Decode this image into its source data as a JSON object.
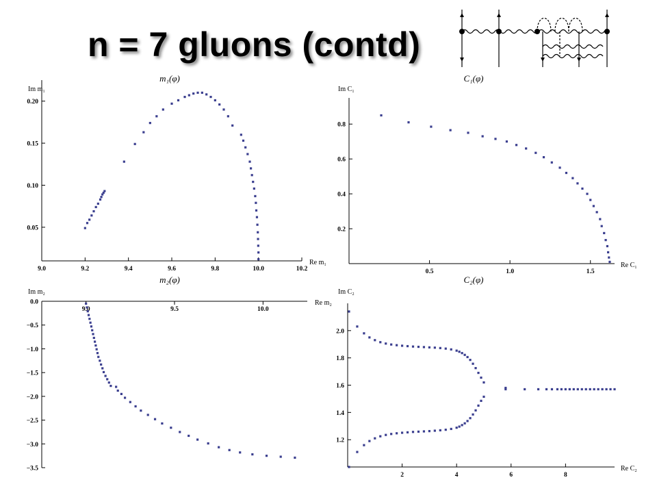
{
  "slide": {
    "title": "n = 7 gluons (contd)"
  },
  "diagram": {
    "description": ""
  },
  "chart_data": [
    {
      "id": "m1",
      "type": "scatter",
      "title": "m₁(φ)",
      "xlabel": "Re m₁",
      "ylabel": "Im m₁",
      "xlim": [
        9.0,
        10.2
      ],
      "ylim": [
        0.01,
        0.225
      ],
      "xticks": [
        9.0,
        9.2,
        9.4,
        9.6,
        9.8,
        10.0,
        10.2
      ],
      "yticks": [
        0.05,
        0.1,
        0.15,
        0.2
      ],
      "xtick_labels": [
        "9.0",
        "9.2",
        "9.4",
        "9.6",
        "9.8",
        "10.0",
        "10.2"
      ],
      "ytick_labels": [
        "0.05",
        "0.10",
        "0.15",
        "0.20"
      ],
      "color": "#3b3f8f",
      "points": [
        [
          9.2,
          0.049
        ],
        [
          9.21,
          0.055
        ],
        [
          9.22,
          0.059
        ],
        [
          9.23,
          0.064
        ],
        [
          9.24,
          0.069
        ],
        [
          9.25,
          0.074
        ],
        [
          9.26,
          0.078
        ],
        [
          9.27,
          0.083
        ],
        [
          9.275,
          0.086
        ],
        [
          9.28,
          0.089
        ],
        [
          9.285,
          0.091
        ],
        [
          9.29,
          0.093
        ],
        [
          9.38,
          0.128
        ],
        [
          9.43,
          0.149
        ],
        [
          9.47,
          0.163
        ],
        [
          9.5,
          0.174
        ],
        [
          9.53,
          0.182
        ],
        [
          9.56,
          0.19
        ],
        [
          9.6,
          0.197
        ],
        [
          9.63,
          0.201
        ],
        [
          9.66,
          0.205
        ],
        [
          9.68,
          0.207
        ],
        [
          9.7,
          0.209
        ],
        [
          9.72,
          0.21
        ],
        [
          9.74,
          0.21
        ],
        [
          9.76,
          0.208
        ],
        [
          9.78,
          0.205
        ],
        [
          9.8,
          0.201
        ],
        [
          9.82,
          0.196
        ],
        [
          9.84,
          0.19
        ],
        [
          9.86,
          0.182
        ],
        [
          9.88,
          0.171
        ],
        [
          9.92,
          0.16
        ],
        [
          9.93,
          0.153
        ],
        [
          9.94,
          0.145
        ],
        [
          9.95,
          0.137
        ],
        [
          9.96,
          0.128
        ],
        [
          9.965,
          0.12
        ],
        [
          9.97,
          0.112
        ],
        [
          9.975,
          0.104
        ],
        [
          9.98,
          0.096
        ],
        [
          9.985,
          0.087
        ],
        [
          9.988,
          0.079
        ],
        [
          9.99,
          0.07
        ],
        [
          9.993,
          0.062
        ],
        [
          9.995,
          0.053
        ],
        [
          9.997,
          0.044
        ],
        [
          9.998,
          0.036
        ],
        [
          9.999,
          0.028
        ],
        [
          10.0,
          0.02
        ],
        [
          10.0,
          0.012
        ]
      ]
    },
    {
      "id": "C1",
      "type": "scatter",
      "title": "C₁(φ)",
      "xlabel": "Re C₁",
      "ylabel": "Im C₁",
      "xlim": [
        0,
        1.65
      ],
      "ylim": [
        0,
        0.95
      ],
      "xticks": [
        0.5,
        1.0,
        1.5
      ],
      "yticks": [
        0.2,
        0.4,
        0.6,
        0.8
      ],
      "xtick_labels": [
        "0.5",
        "1.0",
        "1.5"
      ],
      "ytick_labels": [
        "0.2",
        "0.4",
        "0.6",
        "0.8"
      ],
      "color": "#3b3f8f",
      "points": [
        [
          0.2,
          0.85
        ],
        [
          0.37,
          0.81
        ],
        [
          0.51,
          0.785
        ],
        [
          0.63,
          0.765
        ],
        [
          0.74,
          0.75
        ],
        [
          0.83,
          0.73
        ],
        [
          0.91,
          0.715
        ],
        [
          0.98,
          0.7
        ],
        [
          1.04,
          0.68
        ],
        [
          1.1,
          0.66
        ],
        [
          1.16,
          0.635
        ],
        [
          1.21,
          0.61
        ],
        [
          1.26,
          0.58
        ],
        [
          1.31,
          0.55
        ],
        [
          1.35,
          0.52
        ],
        [
          1.39,
          0.49
        ],
        [
          1.42,
          0.46
        ],
        [
          1.45,
          0.43
        ],
        [
          1.48,
          0.4
        ],
        [
          1.5,
          0.365
        ],
        [
          1.52,
          0.33
        ],
        [
          1.54,
          0.295
        ],
        [
          1.56,
          0.255
        ],
        [
          1.57,
          0.215
        ],
        [
          1.585,
          0.175
        ],
        [
          1.595,
          0.135
        ],
        [
          1.605,
          0.1
        ],
        [
          1.61,
          0.065
        ],
        [
          1.615,
          0.035
        ],
        [
          1.62,
          0.01
        ]
      ]
    },
    {
      "id": "m2",
      "type": "scatter",
      "title": "m₂(φ)",
      "xlabel": "Re m₂",
      "ylabel": "Im m₂",
      "xlim": [
        8.75,
        10.25
      ],
      "ylim": [
        -3.5,
        0.0
      ],
      "xticks": [
        9.0,
        9.5,
        10.0
      ],
      "yticks": [
        0.0,
        -0.5,
        -1.0,
        -1.5,
        -2.0,
        -2.5,
        -3.0,
        -3.5
      ],
      "xtick_labels": [
        "9.0",
        "9.5",
        "10.0"
      ],
      "ytick_labels": [
        "0.0",
        "−0.5",
        "−1.0",
        "−1.5",
        "−2.0",
        "−2.5",
        "−3.0",
        "−3.5"
      ],
      "color": "#3b3f8f",
      "points": [
        [
          9.0,
          -0.05
        ],
        [
          9.005,
          -0.13
        ],
        [
          9.01,
          -0.21
        ],
        [
          9.015,
          -0.29
        ],
        [
          9.02,
          -0.37
        ],
        [
          9.025,
          -0.45
        ],
        [
          9.03,
          -0.53
        ],
        [
          9.035,
          -0.61
        ],
        [
          9.04,
          -0.69
        ],
        [
          9.045,
          -0.77
        ],
        [
          9.05,
          -0.85
        ],
        [
          9.055,
          -0.93
        ],
        [
          9.06,
          -1.01
        ],
        [
          9.065,
          -1.09
        ],
        [
          9.07,
          -1.17
        ],
        [
          9.078,
          -1.25
        ],
        [
          9.085,
          -1.33
        ],
        [
          9.093,
          -1.41
        ],
        [
          9.1,
          -1.49
        ],
        [
          9.11,
          -1.57
        ],
        [
          9.12,
          -1.64
        ],
        [
          9.13,
          -1.71
        ],
        [
          9.14,
          -1.78
        ],
        [
          9.17,
          -1.8
        ],
        [
          9.18,
          -1.88
        ],
        [
          9.2,
          -1.95
        ],
        [
          9.22,
          -2.03
        ],
        [
          9.25,
          -2.12
        ],
        [
          9.28,
          -2.21
        ],
        [
          9.31,
          -2.3
        ],
        [
          9.35,
          -2.39
        ],
        [
          9.39,
          -2.48
        ],
        [
          9.43,
          -2.57
        ],
        [
          9.48,
          -2.66
        ],
        [
          9.53,
          -2.75
        ],
        [
          9.58,
          -2.83
        ],
        [
          9.63,
          -2.91
        ],
        [
          9.69,
          -2.99
        ],
        [
          9.75,
          -3.07
        ],
        [
          9.81,
          -3.13
        ],
        [
          9.87,
          -3.18
        ],
        [
          9.94,
          -3.22
        ],
        [
          10.02,
          -3.25
        ],
        [
          10.1,
          -3.27
        ],
        [
          10.18,
          -3.29
        ]
      ]
    },
    {
      "id": "C2",
      "type": "scatter",
      "title": "C₂(φ)",
      "xlabel": "Re C₂",
      "ylabel": "Im C₂",
      "xlim": [
        0,
        9.8
      ],
      "ylim": [
        1.0,
        2.2
      ],
      "xticks": [
        2,
        4,
        6,
        8
      ],
      "yticks": [
        1.2,
        1.4,
        1.6,
        1.8,
        2.0
      ],
      "xtick_labels": [
        "2",
        "4",
        "6",
        "8"
      ],
      "ytick_labels": [
        "1.2",
        "1.4",
        "1.6",
        "1.8",
        "2.0"
      ],
      "color": "#3b3f8f",
      "series": [
        {
          "points": [
            [
              0.05,
              2.14
            ],
            [
              0.35,
              2.03
            ],
            [
              0.6,
              1.98
            ],
            [
              0.8,
              1.95
            ],
            [
              1.0,
              1.93
            ],
            [
              1.2,
              1.915
            ],
            [
              1.4,
              1.905
            ],
            [
              1.6,
              1.898
            ],
            [
              1.8,
              1.893
            ],
            [
              2.0,
              1.889
            ],
            [
              2.2,
              1.886
            ],
            [
              2.4,
              1.883
            ],
            [
              2.6,
              1.881
            ],
            [
              2.8,
              1.879
            ],
            [
              3.0,
              1.877
            ],
            [
              3.2,
              1.875
            ],
            [
              3.4,
              1.872
            ],
            [
              3.6,
              1.868
            ],
            [
              3.8,
              1.862
            ],
            [
              4.0,
              1.853
            ],
            [
              4.1,
              1.845
            ],
            [
              4.2,
              1.835
            ],
            [
              4.3,
              1.822
            ],
            [
              4.4,
              1.806
            ],
            [
              4.5,
              1.785
            ],
            [
              4.6,
              1.757
            ],
            [
              4.7,
              1.725
            ],
            [
              4.8,
              1.69
            ],
            [
              4.9,
              1.655
            ],
            [
              5.0,
              1.62
            ]
          ]
        },
        {
          "points": [
            [
              0.05,
              1.0
            ],
            [
              0.35,
              1.11
            ],
            [
              0.6,
              1.16
            ],
            [
              0.8,
              1.19
            ],
            [
              1.0,
              1.21
            ],
            [
              1.2,
              1.225
            ],
            [
              1.4,
              1.235
            ],
            [
              1.6,
              1.242
            ],
            [
              1.8,
              1.247
            ],
            [
              2.0,
              1.251
            ],
            [
              2.2,
              1.254
            ],
            [
              2.4,
              1.257
            ],
            [
              2.6,
              1.259
            ],
            [
              2.8,
              1.261
            ],
            [
              3.0,
              1.263
            ],
            [
              3.2,
              1.266
            ],
            [
              3.4,
              1.269
            ],
            [
              3.6,
              1.273
            ],
            [
              3.8,
              1.279
            ],
            [
              4.0,
              1.288
            ],
            [
              4.1,
              1.296
            ],
            [
              4.2,
              1.307
            ],
            [
              4.3,
              1.32
            ],
            [
              4.4,
              1.337
            ],
            [
              4.5,
              1.358
            ],
            [
              4.6,
              1.385
            ],
            [
              4.7,
              1.415
            ],
            [
              4.8,
              1.45
            ],
            [
              4.9,
              1.485
            ],
            [
              5.0,
              1.515
            ]
          ]
        },
        {
          "points": [
            [
              5.8,
              1.57
            ],
            [
              5.8,
              1.58
            ],
            [
              6.5,
              1.57
            ],
            [
              7.0,
              1.57
            ],
            [
              7.3,
              1.57
            ],
            [
              7.5,
              1.57
            ],
            [
              7.7,
              1.57
            ],
            [
              7.85,
              1.57
            ],
            [
              8.0,
              1.57
            ],
            [
              8.15,
              1.57
            ],
            [
              8.3,
              1.57
            ],
            [
              8.45,
              1.57
            ],
            [
              8.6,
              1.57
            ],
            [
              8.75,
              1.57
            ],
            [
              8.9,
              1.57
            ],
            [
              9.05,
              1.57
            ],
            [
              9.2,
              1.57
            ],
            [
              9.35,
              1.57
            ],
            [
              9.5,
              1.57
            ],
            [
              9.65,
              1.57
            ],
            [
              9.8,
              1.57
            ]
          ]
        }
      ]
    }
  ]
}
